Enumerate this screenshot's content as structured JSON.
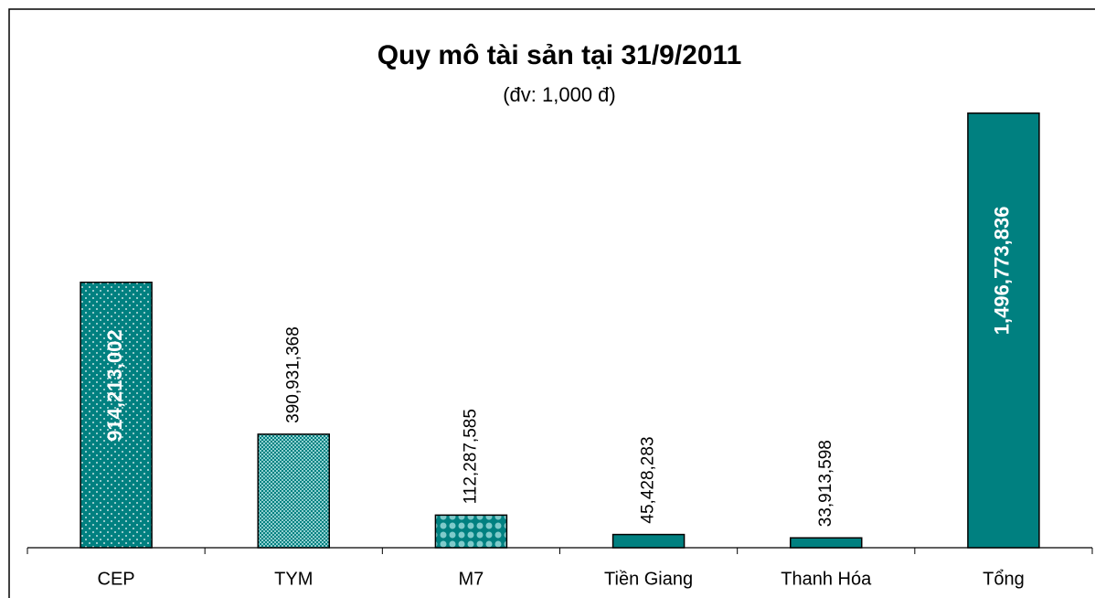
{
  "chart_data": {
    "type": "bar",
    "title": "Quy mô tài sản tại 31/9/2011",
    "subtitle": "(đv: 1,000 đ)",
    "categories": [
      "CEP",
      "TYM",
      "M7",
      "Tiền Giang",
      "Thanh Hóa",
      "Tổng"
    ],
    "values": [
      914213002,
      390931368,
      112287585,
      45428283,
      33913598,
      1496773836
    ],
    "value_labels": [
      "914,213,002",
      "390,931,368",
      "112,287,585",
      "45,428,283",
      "33,913,598",
      "1,496,773,836"
    ],
    "label_positions": [
      "inside",
      "outside",
      "outside",
      "outside",
      "outside",
      "inside"
    ],
    "patterns": [
      "dots",
      "hatch",
      "circles",
      "solid",
      "solid",
      "solid"
    ],
    "color": "#008080",
    "ylim": [
      0,
      1600000000
    ],
    "grid": false
  }
}
